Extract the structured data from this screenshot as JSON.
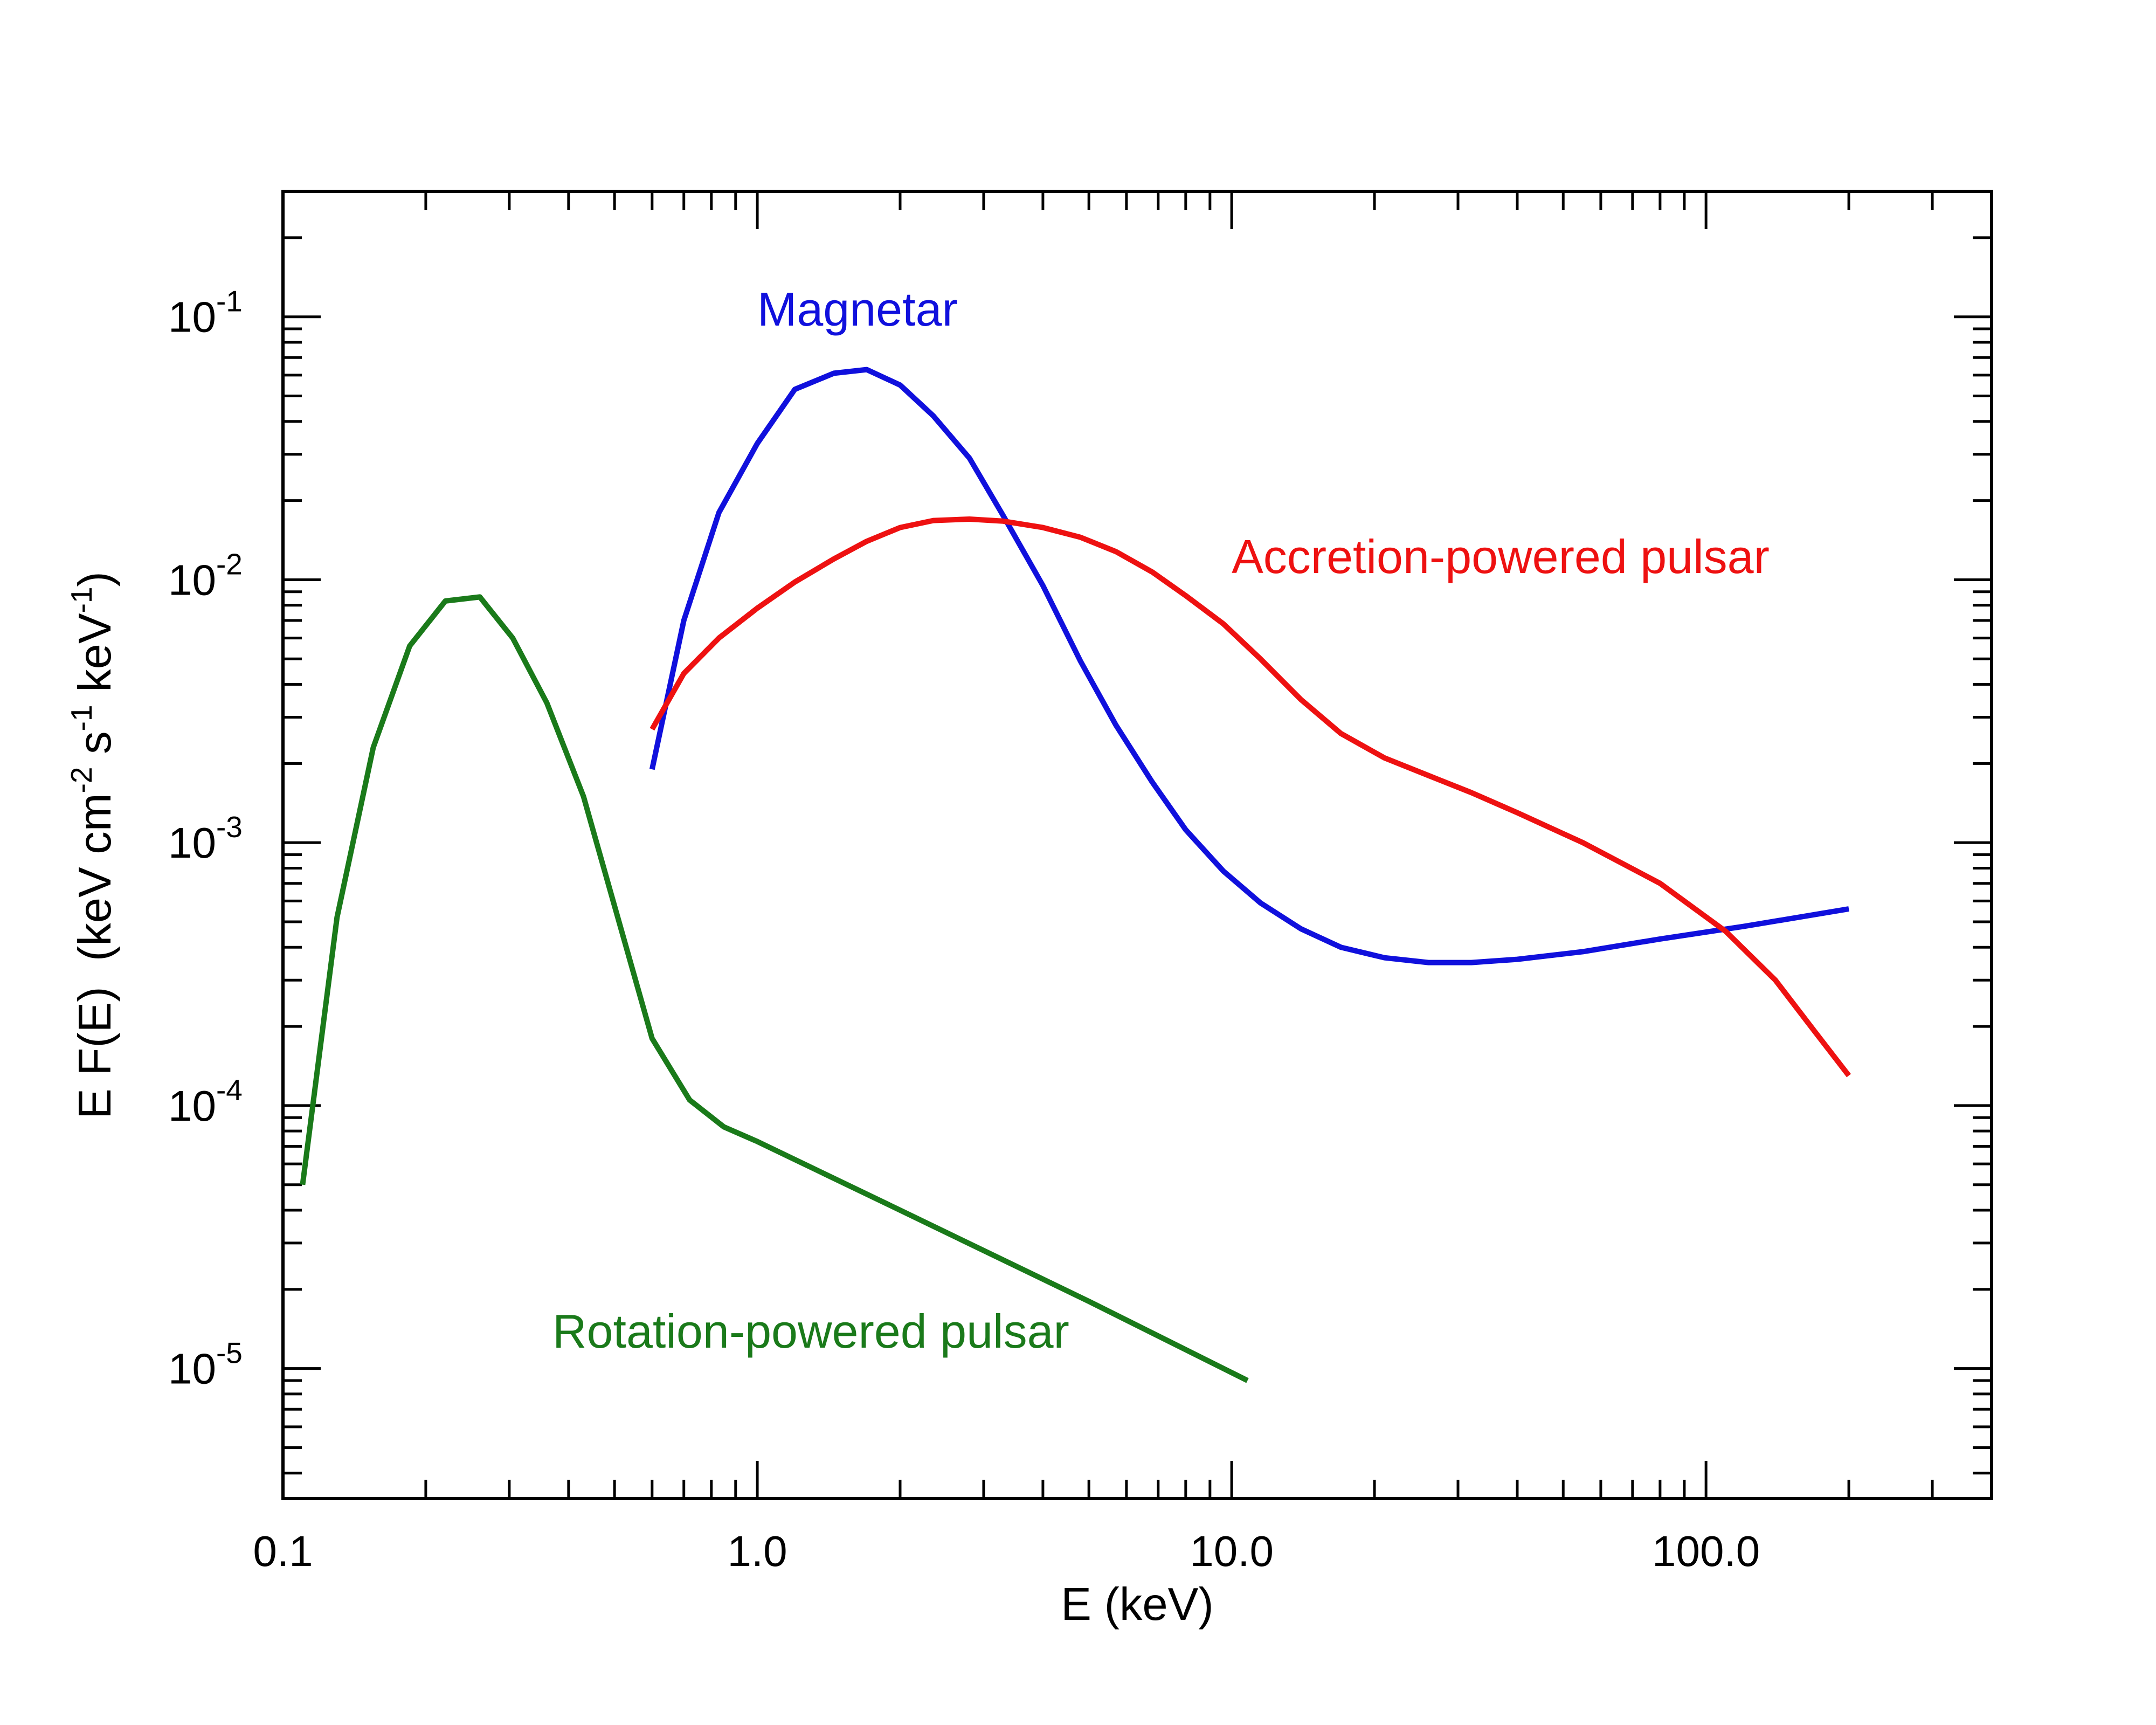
{
  "chart_data": {
    "type": "line",
    "title": "",
    "xlabel": "E (keV)",
    "ylabel": {
      "parts": [
        {
          "t": "E F(E)  (keV cm"
        },
        {
          "t": "-2",
          "sup": true
        },
        {
          "t": " s"
        },
        {
          "t": "-1",
          "sup": true
        },
        {
          "t": " keV"
        },
        {
          "t": "-1",
          "sup": true
        },
        {
          "t": ")"
        }
      ]
    },
    "x_scale": "log",
    "y_scale": "log",
    "xlim": [
      0.1,
      400
    ],
    "ylim": [
      3.2e-06,
      0.3
    ],
    "x_ticks": [
      {
        "value": 0.1,
        "label": "0.1"
      },
      {
        "value": 1,
        "label": "1.0"
      },
      {
        "value": 10,
        "label": "10.0"
      },
      {
        "value": 100,
        "label": "100.0"
      }
    ],
    "y_ticks": [
      {
        "value": 1e-05,
        "base": "10",
        "exp": "-5"
      },
      {
        "value": 0.0001,
        "base": "10",
        "exp": "-4"
      },
      {
        "value": 0.001,
        "base": "10",
        "exp": "-3"
      },
      {
        "value": 0.01,
        "base": "10",
        "exp": "-2"
      },
      {
        "value": 0.1,
        "base": "10",
        "exp": "-1"
      }
    ],
    "series": [
      {
        "name": "Rotation-powered pulsar",
        "color": "#1a7a1a",
        "label_anchor": [
          0.37,
          1.2e-05
        ],
        "x": [
          0.11,
          0.13,
          0.155,
          0.185,
          0.22,
          0.26,
          0.305,
          0.36,
          0.43,
          0.6,
          0.72,
          0.85,
          1.0,
          2.0,
          5.0,
          10.8
        ],
        "y": [
          5e-05,
          0.00052,
          0.0023,
          0.0056,
          0.0083,
          0.0086,
          0.006,
          0.0034,
          0.0015,
          0.00018,
          0.000105,
          8.3e-05,
          7.3e-05,
          4e-05,
          1.8e-05,
          9e-06
        ]
      },
      {
        "name": "Magnetar",
        "color": "#1010dd",
        "label_anchor": [
          1.0,
          0.0925
        ],
        "x": [
          0.6,
          0.7,
          0.83,
          1.0,
          1.2,
          1.45,
          1.7,
          2.0,
          2.35,
          2.8,
          3.3,
          4.0,
          4.8,
          5.7,
          6.8,
          8.0,
          9.6,
          11.5,
          14.0,
          17.0,
          21.0,
          26.0,
          32.0,
          40.0,
          55.0,
          80.0,
          120.0,
          200.0
        ],
        "y": [
          0.0019,
          0.007,
          0.018,
          0.033,
          0.053,
          0.061,
          0.063,
          0.055,
          0.042,
          0.029,
          0.0175,
          0.0095,
          0.0049,
          0.0028,
          0.0017,
          0.00112,
          0.00078,
          0.00059,
          0.00047,
          0.0004,
          0.000365,
          0.00035,
          0.00035,
          0.00036,
          0.000385,
          0.00043,
          0.00048,
          0.00056
        ]
      },
      {
        "name": "Accretion-powered pulsar",
        "color": "#ee1111",
        "label_anchor": [
          10.0,
          0.0106
        ],
        "x": [
          0.6,
          0.7,
          0.83,
          1.0,
          1.2,
          1.45,
          1.7,
          2.0,
          2.35,
          2.8,
          3.3,
          4.0,
          4.8,
          5.7,
          6.8,
          8.0,
          9.6,
          11.5,
          14.0,
          17.0,
          21.0,
          26.0,
          32.0,
          40.0,
          55.0,
          80.0,
          110.0,
          140.0,
          170.0,
          200.0
        ],
        "y": [
          0.0027,
          0.0044,
          0.006,
          0.0078,
          0.0098,
          0.012,
          0.014,
          0.0158,
          0.0168,
          0.017,
          0.0167,
          0.0158,
          0.0145,
          0.0128,
          0.0107,
          0.0087,
          0.0068,
          0.005,
          0.0035,
          0.0026,
          0.0021,
          0.0018,
          0.00155,
          0.0013,
          0.001,
          0.0007,
          0.00046,
          0.0003,
          0.00019,
          0.00013
        ]
      }
    ]
  }
}
